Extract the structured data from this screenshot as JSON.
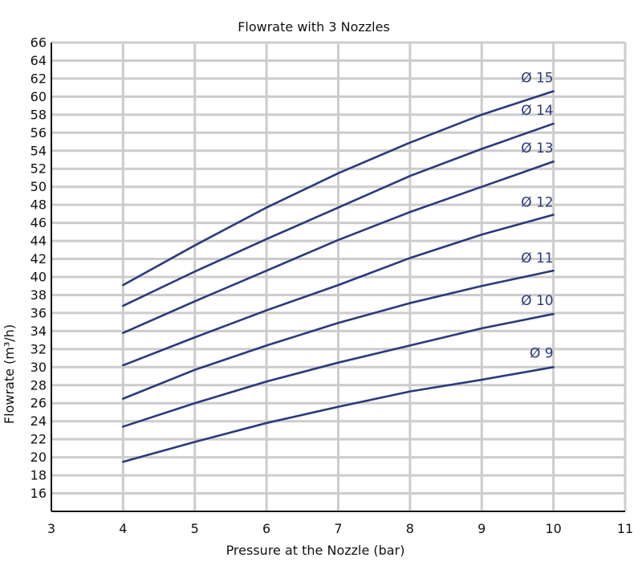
{
  "chart_data": {
    "type": "line",
    "title": "Flowrate with 3 Nozzles",
    "xlabel": "Pressure at the Nozzle (bar)",
    "ylabel": "Flowrate (m³/h)",
    "xlim": [
      3,
      11
    ],
    "ylim": [
      14,
      66
    ],
    "x_ticks": [
      3,
      4,
      5,
      6,
      7,
      8,
      9,
      10,
      11
    ],
    "y_ticks": [
      16,
      18,
      20,
      22,
      24,
      26,
      28,
      30,
      32,
      34,
      36,
      38,
      40,
      42,
      44,
      46,
      48,
      50,
      52,
      54,
      56,
      58,
      60,
      62,
      64,
      66
    ],
    "grid": true,
    "line_color": "#2b3a7c",
    "x": [
      4,
      5,
      6,
      7,
      8,
      9,
      10
    ],
    "series": [
      {
        "name": "Ø 9",
        "values": [
          19.5,
          21.7,
          23.8,
          25.6,
          27.3,
          28.6,
          30.0
        ]
      },
      {
        "name": "Ø 10",
        "values": [
          23.4,
          26.0,
          28.4,
          30.5,
          32.4,
          34.3,
          35.9
        ]
      },
      {
        "name": "Ø 11",
        "values": [
          26.5,
          29.7,
          32.4,
          34.9,
          37.1,
          39.0,
          40.7
        ]
      },
      {
        "name": "Ø 12",
        "values": [
          30.2,
          33.3,
          36.3,
          39.1,
          42.1,
          44.7,
          46.9
        ]
      },
      {
        "name": "Ø 13",
        "values": [
          33.8,
          37.3,
          40.7,
          44.1,
          47.2,
          50.0,
          52.8
        ]
      },
      {
        "name": "Ø 14",
        "values": [
          36.8,
          40.6,
          44.2,
          47.7,
          51.2,
          54.2,
          57.0
        ]
      },
      {
        "name": "Ø 15",
        "values": [
          39.1,
          43.5,
          47.7,
          51.5,
          54.9,
          58.0,
          60.6
        ]
      }
    ]
  }
}
